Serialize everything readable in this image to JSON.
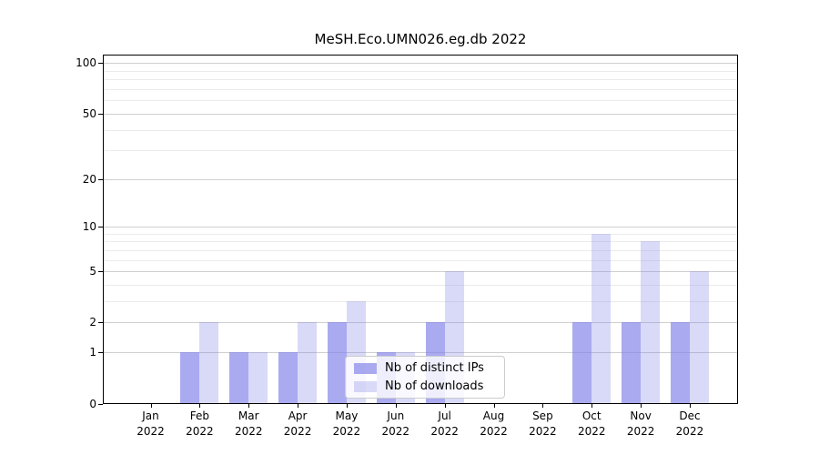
{
  "title": "MeSH.Eco.UMN026.eg.db 2022",
  "chart_data": {
    "type": "bar",
    "title": "MeSH.Eco.UMN026.eg.db 2022",
    "categories": [
      "Jan",
      "Feb",
      "Mar",
      "Apr",
      "May",
      "Jun",
      "Jul",
      "Aug",
      "Sep",
      "Oct",
      "Nov",
      "Dec"
    ],
    "x_tick_year": "2022",
    "series": [
      {
        "name": "Nb of distinct IPs",
        "color": "rgba(128,128,232,0.67)",
        "color_hex": "#a9a9ee",
        "values": [
          0,
          1,
          1,
          1,
          2,
          1,
          2,
          0,
          0,
          2,
          2,
          2
        ]
      },
      {
        "name": "Nb of downloads",
        "color": "rgba(128,128,232,0.30)",
        "color_hex": "#d9d9f7",
        "values": [
          0,
          2,
          1,
          2,
          3,
          1,
          5,
          0,
          0,
          9,
          8,
          5
        ]
      }
    ],
    "yscale": "log1p",
    "yticks": [
      0,
      1,
      2,
      5,
      10,
      20,
      50,
      100
    ],
    "yticks_minor": [
      3,
      4,
      6,
      7,
      8,
      9,
      30,
      40,
      60,
      70,
      80,
      90
    ],
    "ylim": [
      0,
      113
    ],
    "xlabel": "",
    "ylabel": "",
    "grid": true,
    "legend_position": "lower center"
  },
  "legend": {
    "items": [
      {
        "label": "Nb of distinct IPs"
      },
      {
        "label": "Nb of downloads"
      }
    ]
  },
  "colors": {
    "background": "#ffffff",
    "axis": "#000000",
    "grid_major": "#cfcfcf",
    "grid_minor": "#ebebeb",
    "legend_border": "#cccccc",
    "legend_bg": "rgba(255,255,255,0.8)",
    "bar_ips": "rgba(128,128,232,0.67)",
    "bar_downloads": "rgba(128,128,232,0.30)"
  }
}
